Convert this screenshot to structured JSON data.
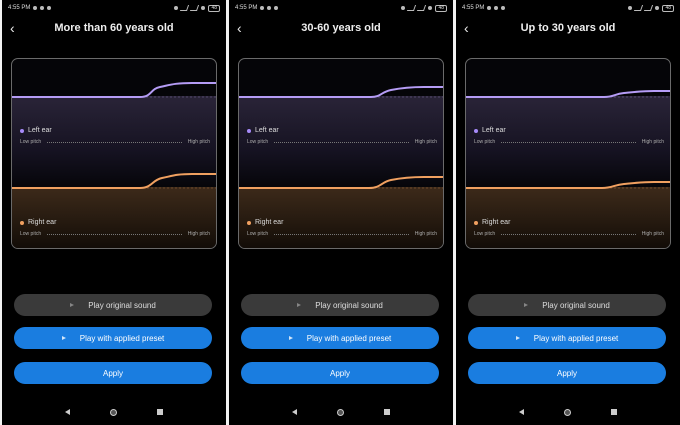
{
  "status": {
    "time": "4:55 PM",
    "battery": "48"
  },
  "colors": {
    "left_ear": "#a78bfa",
    "right_ear": "#f0a060",
    "accent": "#1a7de0"
  },
  "labels": {
    "left_ear": "Left ear",
    "right_ear": "Right ear",
    "low_pitch": "Low pitch",
    "high_pitch": "High pitch",
    "play_original": "Play original sound",
    "play_preset": "Play with applied preset",
    "apply": "Apply"
  },
  "icons": {
    "back": "chevron-left-icon",
    "play": "play-icon",
    "nav_back": "nav-back-icon",
    "nav_home": "nav-home-icon",
    "nav_recent": "nav-recent-icon"
  },
  "screens": [
    {
      "title": "More than 60 years old"
    },
    {
      "title": "30-60 years old"
    },
    {
      "title": "Up to 30 years old"
    }
  ]
}
